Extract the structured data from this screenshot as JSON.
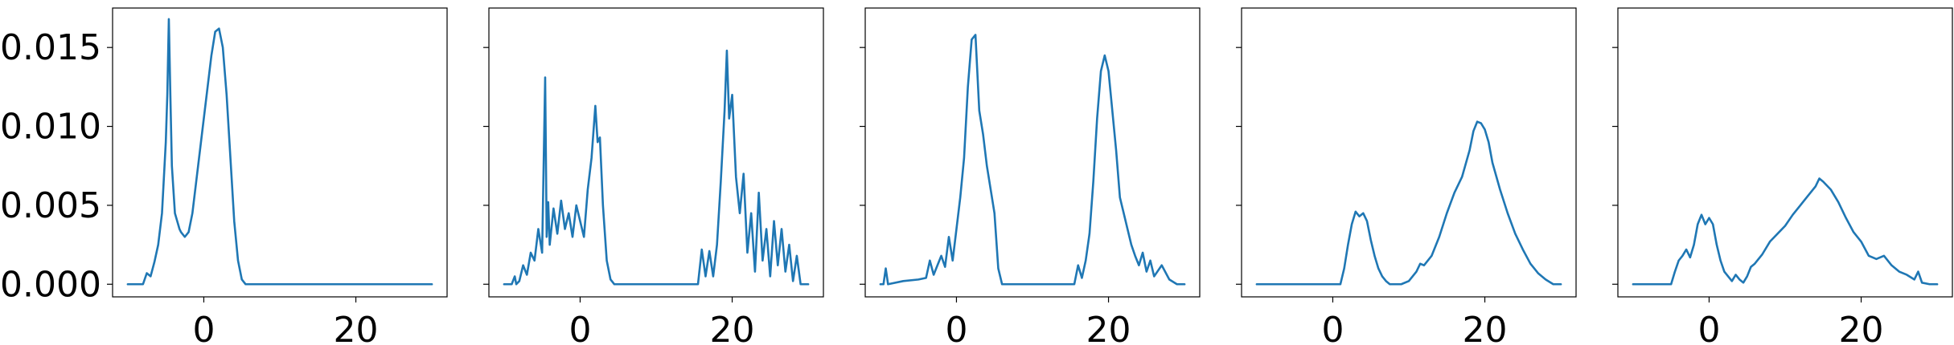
{
  "chart_data": [
    {
      "type": "line",
      "xlim": [
        -12,
        32
      ],
      "ylim": [
        -0.0008,
        0.0175
      ],
      "xticks": [
        0,
        20
      ],
      "xtick_labels": [
        "0",
        "20"
      ],
      "yticks": [
        0.0,
        0.005,
        0.01,
        0.015
      ],
      "ytick_labels": [
        "0.000",
        "0.005",
        "0.010",
        "0.015"
      ],
      "grid": false,
      "series": [
        {
          "color": "#1f77b4",
          "x": [
            -10,
            -9,
            -8,
            -7.5,
            -7,
            -6.5,
            -6,
            -5.5,
            -5,
            -4.8,
            -4.6,
            -4.4,
            -4.2,
            -4,
            -3.8,
            -3.5,
            -3.2,
            -3,
            -2.5,
            -2,
            -1.5,
            -1,
            -0.5,
            0,
            0.5,
            1,
            1.5,
            2,
            2.5,
            3,
            3.5,
            4,
            4.5,
            5,
            5.5,
            6,
            10,
            20,
            29,
            30
          ],
          "y": [
            0,
            0,
            0,
            0.0007,
            0.0005,
            0.0014,
            0.0025,
            0.0045,
            0.009,
            0.012,
            0.0168,
            0.012,
            0.0075,
            0.006,
            0.0045,
            0.004,
            0.0035,
            0.0033,
            0.003,
            0.0033,
            0.0045,
            0.0065,
            0.0085,
            0.0105,
            0.0125,
            0.0145,
            0.016,
            0.0162,
            0.015,
            0.012,
            0.008,
            0.004,
            0.0015,
            0.0003,
            0,
            0,
            0,
            0,
            0,
            0
          ]
        }
      ]
    },
    {
      "type": "line",
      "xlim": [
        -12,
        32
      ],
      "ylim": [
        -0.0008,
        0.0175
      ],
      "xticks": [
        0,
        20
      ],
      "xtick_labels": [
        "0",
        "20"
      ],
      "yticks": [
        0.0,
        0.005,
        0.01,
        0.015
      ],
      "ytick_labels": [
        "",
        "",
        "",
        ""
      ],
      "grid": false,
      "series": [
        {
          "color": "#1f77b4",
          "x": [
            -10,
            -9,
            -8.6,
            -8.4,
            -8,
            -7.5,
            -7,
            -6.5,
            -6,
            -5.5,
            -5,
            -4.6,
            -4.4,
            -4.2,
            -4,
            -3.5,
            -3,
            -2.5,
            -2,
            -1.5,
            -1,
            -0.5,
            0,
            0.5,
            1,
            1.5,
            2,
            2.3,
            2.6,
            3,
            3.5,
            4,
            4.5,
            5,
            8,
            12,
            15.5,
            16,
            16.5,
            17,
            17.5,
            18,
            18.5,
            19,
            19.3,
            19.6,
            20,
            20.5,
            21,
            21.5,
            22,
            22.5,
            23,
            23.5,
            24,
            24.5,
            25,
            25.5,
            26,
            26.5,
            27,
            27.5,
            28,
            28.5,
            29,
            30
          ],
          "y": [
            0,
            0,
            0.0005,
            0,
            0.0002,
            0.0012,
            0.0006,
            0.002,
            0.0015,
            0.0035,
            0.002,
            0.0131,
            0.003,
            0.0052,
            0.0025,
            0.0048,
            0.0032,
            0.0053,
            0.0035,
            0.0045,
            0.003,
            0.005,
            0.004,
            0.003,
            0.006,
            0.008,
            0.0113,
            0.009,
            0.0093,
            0.005,
            0.0015,
            0.0003,
            0,
            0,
            0,
            0,
            0,
            0.0022,
            0.0005,
            0.0021,
            0.0005,
            0.0025,
            0.0065,
            0.011,
            0.0148,
            0.0105,
            0.012,
            0.0068,
            0.0045,
            0.007,
            0.002,
            0.0045,
            0.0008,
            0.0058,
            0.0015,
            0.0035,
            0.0005,
            0.004,
            0.0012,
            0.0035,
            0.0008,
            0.0025,
            0.0002,
            0.0018,
            0,
            0
          ]
        }
      ]
    },
    {
      "type": "line",
      "xlim": [
        -12,
        32
      ],
      "ylim": [
        -0.0008,
        0.0175
      ],
      "xticks": [
        0,
        20
      ],
      "xtick_labels": [
        "0",
        "20"
      ],
      "yticks": [
        0.0,
        0.005,
        0.01,
        0.015
      ],
      "ytick_labels": [
        "",
        "",
        "",
        ""
      ],
      "grid": false,
      "series": [
        {
          "color": "#1f77b4",
          "x": [
            -10,
            -9.6,
            -9.3,
            -9,
            -7,
            -5,
            -4,
            -3.5,
            -3,
            -2.5,
            -2,
            -1.5,
            -1,
            -0.5,
            0,
            0.5,
            1,
            1.5,
            2,
            2.5,
            3,
            3.5,
            4,
            4.5,
            5,
            5.5,
            6,
            10,
            15.5,
            16,
            16.5,
            17,
            17.5,
            18,
            18.5,
            19,
            19.5,
            20,
            20.5,
            21,
            21.5,
            22,
            22.5,
            23,
            23.5,
            24,
            24.5,
            25,
            25.5,
            26,
            27,
            28,
            29,
            30
          ],
          "y": [
            0,
            0,
            0.001,
            0,
            0.0002,
            0.0003,
            0.0004,
            0.0015,
            0.0006,
            0.0012,
            0.0018,
            0.0011,
            0.003,
            0.0015,
            0.0035,
            0.0055,
            0.008,
            0.0125,
            0.0155,
            0.0158,
            0.011,
            0.0095,
            0.0075,
            0.006,
            0.0045,
            0.001,
            0,
            0,
            0,
            0.0012,
            0.0004,
            0.0015,
            0.0032,
            0.0065,
            0.0105,
            0.0135,
            0.0145,
            0.0135,
            0.011,
            0.0085,
            0.0055,
            0.0045,
            0.0035,
            0.0025,
            0.0018,
            0.0012,
            0.002,
            0.0008,
            0.0015,
            0.0005,
            0.0012,
            0.0003,
            0,
            0
          ]
        }
      ]
    },
    {
      "type": "line",
      "xlim": [
        -12,
        32
      ],
      "ylim": [
        -0.0008,
        0.0175
      ],
      "xticks": [
        0,
        20
      ],
      "xtick_labels": [
        "0",
        "20"
      ],
      "yticks": [
        0.0,
        0.005,
        0.01,
        0.015
      ],
      "ytick_labels": [
        "",
        "",
        "",
        ""
      ],
      "grid": false,
      "series": [
        {
          "color": "#1f77b4",
          "x": [
            -10,
            -5,
            0,
            1,
            1.5,
            2,
            2.5,
            3,
            3.5,
            4,
            4.5,
            5,
            5.5,
            6,
            6.5,
            7,
            7.5,
            8,
            9,
            10,
            11,
            11.5,
            12,
            13,
            14,
            15,
            16,
            17,
            18,
            18.5,
            19,
            19.5,
            20,
            20.5,
            21,
            22,
            23,
            24,
            25,
            26,
            27,
            28,
            29,
            30
          ],
          "y": [
            0,
            0,
            0,
            0,
            0.001,
            0.0025,
            0.0038,
            0.0046,
            0.0043,
            0.0045,
            0.004,
            0.0028,
            0.0018,
            0.001,
            0.0005,
            0.0002,
            0,
            0,
            0,
            0.0002,
            0.0008,
            0.0013,
            0.0012,
            0.0018,
            0.003,
            0.0045,
            0.0058,
            0.0068,
            0.0085,
            0.0097,
            0.0103,
            0.0102,
            0.0098,
            0.009,
            0.0077,
            0.006,
            0.0045,
            0.0032,
            0.0022,
            0.0013,
            0.0007,
            0.0003,
            0,
            0
          ]
        }
      ]
    },
    {
      "type": "line",
      "xlim": [
        -12,
        32
      ],
      "ylim": [
        -0.0008,
        0.0175
      ],
      "xticks": [
        0,
        20
      ],
      "xtick_labels": [
        "0",
        "20"
      ],
      "yticks": [
        0.0,
        0.005,
        0.01,
        0.015
      ],
      "ytick_labels": [
        "",
        "",
        "",
        ""
      ],
      "grid": false,
      "series": [
        {
          "color": "#1f77b4",
          "x": [
            -10,
            -6,
            -5,
            -4.5,
            -4,
            -3.5,
            -3,
            -2.5,
            -2,
            -1.5,
            -1,
            -0.5,
            0,
            0.5,
            1,
            1.5,
            2,
            2.5,
            3,
            3.5,
            4,
            4.5,
            5,
            5.5,
            6,
            7,
            8,
            9,
            10,
            11,
            12,
            13,
            14,
            14.5,
            15,
            16,
            17,
            18,
            19,
            20,
            21,
            22,
            23,
            24,
            25,
            26,
            27,
            27.5,
            28,
            29,
            30
          ],
          "y": [
            0,
            0,
            0,
            0.0008,
            0.0015,
            0.0018,
            0.0022,
            0.0017,
            0.0025,
            0.0038,
            0.0044,
            0.0038,
            0.0042,
            0.0038,
            0.0025,
            0.0015,
            0.0008,
            0.0005,
            0.0002,
            0.0006,
            0.0003,
            0.0001,
            0.0005,
            0.0011,
            0.0013,
            0.0019,
            0.0027,
            0.0032,
            0.0037,
            0.0044,
            0.005,
            0.0056,
            0.0062,
            0.0067,
            0.0065,
            0.006,
            0.0052,
            0.0042,
            0.0033,
            0.0027,
            0.0018,
            0.0016,
            0.0018,
            0.0012,
            0.0008,
            0.0006,
            0.0003,
            0.0008,
            0.0001,
            0,
            0
          ]
        }
      ]
    }
  ]
}
